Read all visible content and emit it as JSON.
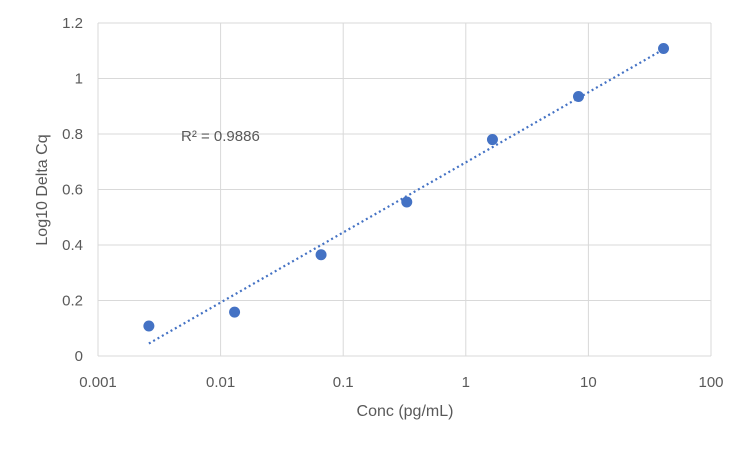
{
  "chart_data": {
    "type": "scatter",
    "title": "",
    "xlabel": "Conc (pg/mL)",
    "ylabel": "Log10 Delta Cq",
    "x_scale": "log",
    "xlim": [
      0.001,
      100
    ],
    "ylim": [
      0,
      1.2
    ],
    "x_ticks": [
      0.001,
      0.01,
      0.1,
      1,
      10,
      100
    ],
    "x_tick_labels": [
      "0.001",
      "0.01",
      "0.1",
      "1",
      "10",
      "100"
    ],
    "y_ticks": [
      0,
      0.2,
      0.4,
      0.6,
      0.8,
      1,
      1.2
    ],
    "y_tick_labels": [
      "0",
      "0.2",
      "0.4",
      "0.6",
      "0.8",
      "1",
      "1.2"
    ],
    "grid": true,
    "series": [
      {
        "marker_color": "#4472c4",
        "x": [
          0.0026,
          0.013,
          0.066,
          0.33,
          1.65,
          8.3,
          41
        ],
        "y": [
          0.108,
          0.158,
          0.365,
          0.555,
          0.78,
          0.935,
          1.108
        ]
      }
    ],
    "trendline": {
      "style": "dotted",
      "color": "#4472c4",
      "x": [
        0.0026,
        41
      ],
      "y": [
        0.045,
        1.105
      ]
    },
    "annotations": [
      {
        "text": "R² = 0.9886"
      }
    ],
    "colors": {
      "grid": "#d9d9d9",
      "text": "#595959"
    }
  }
}
